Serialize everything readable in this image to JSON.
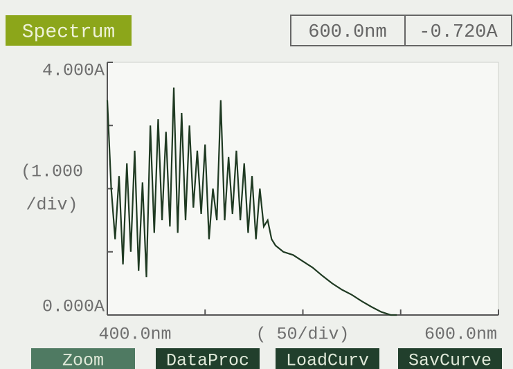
{
  "header": {
    "title": "Spectrum",
    "wavelength": "600.0nm",
    "absorbance": "-0.720A"
  },
  "chart_data": {
    "type": "line",
    "color": "#1f3a22",
    "x": [
      400,
      402,
      404,
      406,
      408,
      410,
      412,
      414,
      416,
      418,
      420,
      422,
      424,
      426,
      428,
      430,
      432,
      434,
      436,
      438,
      440,
      442,
      444,
      446,
      448,
      450,
      452,
      454,
      456,
      458,
      460,
      462,
      464,
      466,
      468,
      470,
      472,
      474,
      476,
      478,
      480,
      482,
      484,
      486,
      490,
      495,
      500,
      505,
      510,
      515,
      520,
      525,
      530,
      535,
      540,
      545,
      548
    ],
    "values": [
      3.4,
      2.0,
      1.2,
      2.2,
      0.8,
      2.4,
      1.0,
      2.6,
      0.7,
      2.1,
      0.6,
      3.0,
      1.3,
      3.1,
      1.5,
      2.9,
      1.4,
      3.6,
      1.3,
      3.2,
      1.5,
      3.0,
      1.7,
      2.6,
      1.6,
      2.7,
      1.2,
      2.0,
      1.5,
      3.4,
      1.5,
      2.5,
      1.6,
      2.6,
      1.5,
      2.4,
      1.3,
      2.2,
      1.2,
      2.0,
      1.4,
      1.5,
      1.2,
      1.1,
      1.0,
      0.95,
      0.85,
      0.75,
      0.62,
      0.5,
      0.4,
      0.32,
      0.22,
      0.13,
      0.05,
      0.0,
      0.0
    ],
    "xlim": [
      400,
      600
    ],
    "ylim": [
      0,
      4
    ],
    "xticks": [
      {
        "value": 400,
        "label": "400.0nm"
      },
      {
        "value": 600,
        "label": "600.0nm"
      }
    ],
    "yticks": [
      {
        "value": 0,
        "label": "0.000A"
      },
      {
        "value": 4,
        "label": "4.000A"
      }
    ],
    "xminor_ticks": [
      450,
      500,
      550
    ],
    "yminor_ticks": [
      1,
      2,
      3
    ],
    "xlabel": "( 50/div)",
    "ylabel": [
      "(1.000",
      "/div)"
    ]
  },
  "buttons": [
    "Zoom",
    "DataProc",
    "LoadCurv",
    "SavCurve"
  ]
}
